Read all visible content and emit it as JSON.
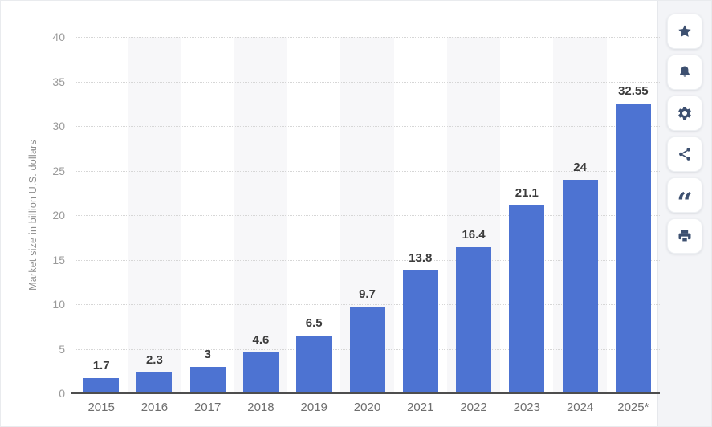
{
  "chart_data": {
    "type": "bar",
    "categories": [
      "2015",
      "2016",
      "2017",
      "2018",
      "2019",
      "2020",
      "2021",
      "2022",
      "2023",
      "2024",
      "2025*"
    ],
    "values": [
      1.7,
      2.3,
      3,
      4.6,
      6.5,
      9.7,
      13.8,
      16.4,
      21.1,
      24,
      32.55
    ],
    "value_labels": [
      "1.7",
      "2.3",
      "3",
      "4.6",
      "6.5",
      "9.7",
      "13.8",
      "16.4",
      "21.1",
      "24",
      "32.55"
    ],
    "title": "",
    "xlabel": "",
    "ylabel": "Market size in billion U.S. dollars",
    "yticks": [
      0,
      5,
      10,
      15,
      20,
      25,
      30,
      35,
      40
    ],
    "ylim": [
      0,
      40
    ],
    "grid": "horizontal-dotted",
    "legend": "none",
    "bar_color": "#4d73d2",
    "stripe_color": "#f7f7f9"
  },
  "toolbar": {
    "quote_glyph": "“",
    "buttons": [
      {
        "label": "favorite",
        "icon": "star-icon"
      },
      {
        "label": "notifications",
        "icon": "bell-icon"
      },
      {
        "label": "settings",
        "icon": "gear-icon"
      },
      {
        "label": "share",
        "icon": "share-icon"
      },
      {
        "label": "cite",
        "icon": "quote-icon"
      },
      {
        "label": "print",
        "icon": "printer-icon"
      }
    ]
  }
}
